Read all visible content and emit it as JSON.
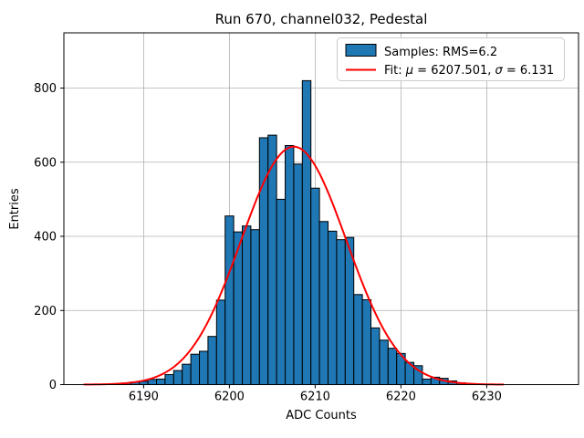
{
  "figure": {
    "background": "#ffffff"
  },
  "colors": {
    "bar_fill": "#1f77b4",
    "bar_edge": "#000000",
    "fit_line": "#ff0000",
    "grid": "#b0b0b0",
    "frame": "#000000",
    "legend_edge": "#cccccc",
    "legend_bg": "#ffffff"
  },
  "legend": {
    "sample_swatch": "patch",
    "fit_swatch": "line",
    "fit_label_parts": [
      {
        "text": "Fit: ",
        "italic": false
      },
      {
        "text": "μ",
        "italic": true
      },
      {
        "text": " = 6207.501, ",
        "italic": false
      },
      {
        "text": "σ",
        "italic": true
      },
      {
        "text": " = 6.131",
        "italic": false
      }
    ]
  },
  "chart_data": {
    "type": "bar",
    "title": "Run 670, channel032, Pedestal",
    "xlabel": "ADC Counts",
    "ylabel": "Entries",
    "xlim": [
      6180.7,
      6240.7
    ],
    "ylim": [
      0,
      949
    ],
    "xticks": [
      6190,
      6200,
      6210,
      6220,
      6230
    ],
    "yticks": [
      0,
      200,
      400,
      600,
      800
    ],
    "grid": true,
    "legend_position": "upper right",
    "histogram": {
      "label": "Samples: RMS=6.2",
      "rms": 6.2,
      "bin_width": 1,
      "bin_centers": [
        6188,
        6189,
        6190,
        6191,
        6192,
        6193,
        6194,
        6195,
        6196,
        6197,
        6198,
        6199,
        6200,
        6201,
        6202,
        6203,
        6204,
        6205,
        6206,
        6207,
        6208,
        6209,
        6210,
        6211,
        6212,
        6213,
        6214,
        6215,
        6216,
        6217,
        6218,
        6219,
        6220,
        6221,
        6222,
        6223,
        6224,
        6225,
        6226,
        6227
      ],
      "counts": [
        4,
        7,
        9,
        14,
        15,
        27,
        38,
        55,
        82,
        90,
        130,
        228,
        455,
        412,
        428,
        418,
        666,
        673,
        500,
        645,
        595,
        820,
        530,
        440,
        414,
        391,
        397,
        243,
        229,
        153,
        120,
        98,
        84,
        60,
        51,
        15,
        20,
        17,
        10,
        5
      ]
    },
    "fit": {
      "label": "Fit: μ = 6207.501, σ = 6.131",
      "mu": 6207.501,
      "sigma": 6.131,
      "amplitude": 642,
      "x_range": [
        6183,
        6232
      ]
    }
  }
}
